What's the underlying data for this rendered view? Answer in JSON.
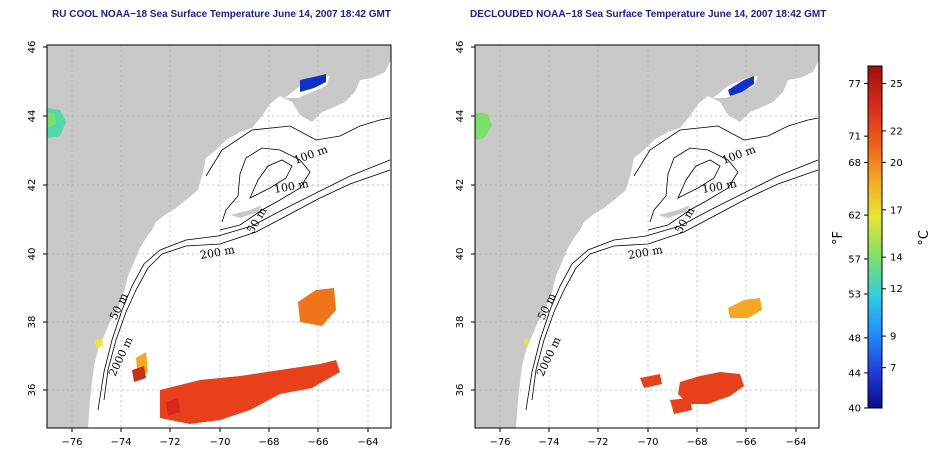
{
  "panels": [
    {
      "title": "RU COOL NOAA−18 Sea Surface Temperature June 14, 2007 18:42 GMT",
      "contour_labels": [
        "100 m",
        "100 m",
        "50 m",
        "200 m",
        "50 m",
        "2000 m"
      ]
    },
    {
      "title": "DECLOUDED NOAA−18 Sea Surface Temperature June 14, 2007 18:42 GMT",
      "contour_labels": [
        "100 m",
        "100 m",
        "50 m",
        "200 m",
        "50 m",
        "2000 m"
      ]
    }
  ],
  "axes": {
    "x_ticks": [
      "−76",
      "−74",
      "−72",
      "−70",
      "−68",
      "−66",
      "−64"
    ],
    "y_ticks": [
      "36",
      "38",
      "40",
      "42",
      "44",
      "46"
    ]
  },
  "colorbar": {
    "fahrenheit_ticks": [
      "77",
      "71",
      "68",
      "62",
      "57",
      "53",
      "48",
      "44",
      "40"
    ],
    "celsius_ticks": [
      "25",
      "22",
      "20",
      "17",
      "14",
      "12",
      "9",
      "7"
    ],
    "fahrenheit_unit": "°F",
    "celsius_unit": "°C",
    "colors": [
      "#0b0b8c",
      "#1f3fe0",
      "#1f8fff",
      "#2fd0e0",
      "#7be06a",
      "#e8e632",
      "#f5a623",
      "#f05a1a",
      "#d8281a",
      "#9e0f0f"
    ]
  },
  "colors": {
    "land": "#c8c8c8",
    "ocean": "#ffffff",
    "title": "#1a1aa0",
    "warm_water": "#e8401a",
    "cold_water": "#1030c8"
  }
}
